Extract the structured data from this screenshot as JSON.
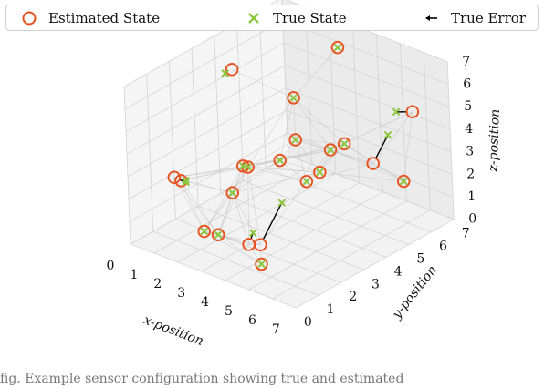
{
  "legend": {
    "estimated_label": "Estimated State",
    "true_label": "True State",
    "error_label": "True Error"
  },
  "caption": "fig. Example sensor configuration showing true and estimated",
  "chart_data": {
    "type": "scatter3d",
    "title": "",
    "xlabel": "x-position",
    "ylabel": "y-position",
    "zlabel": "z-position",
    "xlim": [
      0,
      7
    ],
    "ylim": [
      0,
      7
    ],
    "zlim": [
      0,
      7
    ],
    "xticks": [
      "0",
      "1",
      "2",
      "3",
      "4",
      "5",
      "6",
      "7"
    ],
    "yticks": [
      "0",
      "1",
      "2",
      "3",
      "4",
      "5",
      "6",
      "7"
    ],
    "zticks": [
      "0",
      "1",
      "2",
      "3",
      "4",
      "5",
      "6",
      "7"
    ],
    "grid": true,
    "legend_position": "top",
    "colors": {
      "estimated": "#e8501e",
      "true": "#8cc63f",
      "error": "#000000",
      "edges": "#c8c8c8"
    },
    "series": [
      {
        "name": "Estimated State",
        "marker": "circle-open",
        "points": [
          [
            0.5,
            4.2,
            5.6
          ],
          [
            0.8,
            1.5,
            2.3
          ],
          [
            1.2,
            0.8,
            3.0
          ],
          [
            1.6,
            3.4,
            2.2
          ],
          [
            2.0,
            1.2,
            0.7
          ],
          [
            2.4,
            1.4,
            0.6
          ],
          [
            2.9,
            4.4,
            5.2
          ],
          [
            3.0,
            2.2,
            3.4
          ],
          [
            3.3,
            3.3,
            3.2
          ],
          [
            3.5,
            1.6,
            0.5
          ],
          [
            3.7,
            1.9,
            0.4
          ],
          [
            3.3,
            6.0,
            6.7
          ],
          [
            4.0,
            3.3,
            4.4
          ],
          [
            4.2,
            4.6,
            3.3
          ],
          [
            4.7,
            3.0,
            3.0
          ],
          [
            4.9,
            0.7,
            0.7
          ],
          [
            5.2,
            4.2,
            4.2
          ],
          [
            6.3,
            6.1,
            5.0
          ],
          [
            6.1,
            5.8,
            2.0
          ],
          [
            6.7,
            3.9,
            4.1
          ],
          [
            3.8,
            4.5,
            2.2
          ],
          [
            1.5,
            3.0,
            1.2
          ]
        ]
      },
      {
        "name": "True State",
        "marker": "x",
        "points": [
          [
            0.5,
            3.9,
            5.6
          ],
          [
            1.0,
            1.5,
            2.4
          ],
          [
            1.3,
            1.2,
            2.6
          ],
          [
            1.6,
            3.4,
            2.2
          ],
          [
            2.0,
            1.2,
            0.7
          ],
          [
            2.4,
            1.4,
            0.6
          ],
          [
            2.9,
            4.4,
            5.2
          ],
          [
            3.0,
            2.2,
            3.4
          ],
          [
            3.3,
            3.3,
            3.2
          ],
          [
            3.6,
            1.7,
            1.0
          ],
          [
            3.8,
            2.8,
            1.8
          ],
          [
            3.3,
            6.0,
            6.7
          ],
          [
            4.0,
            3.3,
            4.4
          ],
          [
            4.2,
            4.6,
            3.3
          ],
          [
            4.7,
            3.0,
            3.0
          ],
          [
            4.9,
            0.7,
            0.7
          ],
          [
            5.2,
            4.2,
            4.2
          ],
          [
            5.9,
            5.8,
            5.0
          ],
          [
            6.1,
            5.8,
            2.0
          ],
          [
            6.0,
            5.3,
            4.3
          ],
          [
            3.8,
            4.5,
            2.2
          ],
          [
            1.5,
            3.0,
            1.2
          ]
        ]
      }
    ]
  }
}
